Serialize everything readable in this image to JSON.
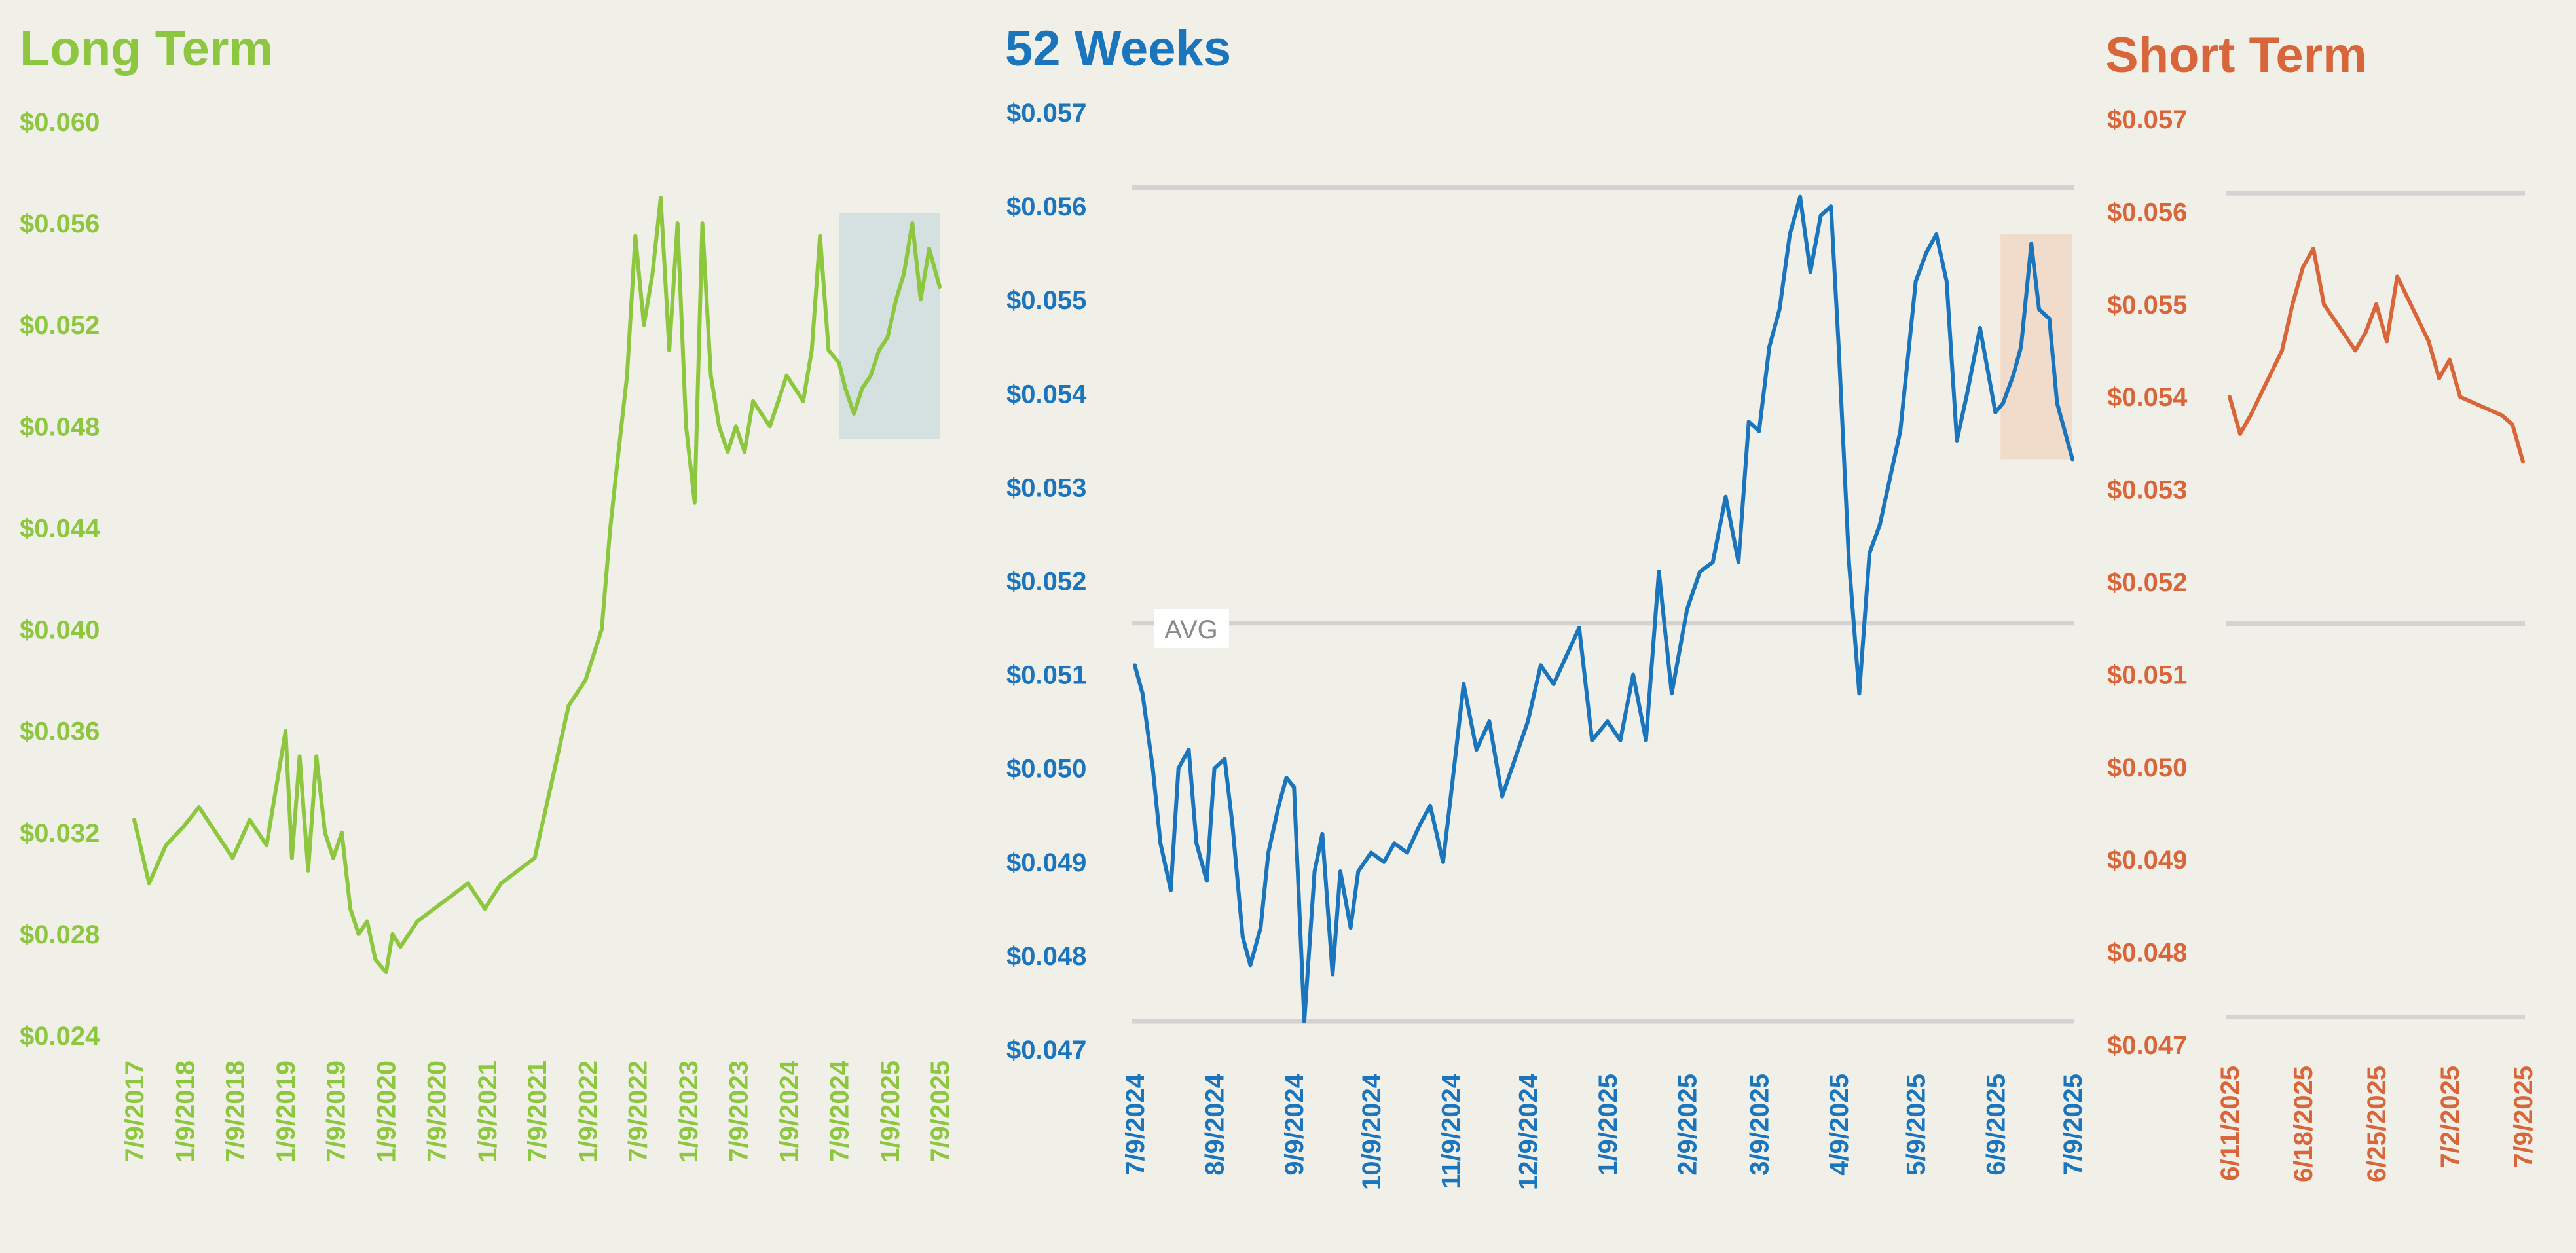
{
  "colors": {
    "background": "#f1f0e8",
    "long_term": "#8dc63f",
    "weeks_52": "#1a75bc",
    "short_term": "#d8663a",
    "long_term_highlight": "#d5e1e1",
    "weeks_52_highlight": "#f1dccb",
    "gridline": "#d3d3d3",
    "avg_label_bg": "#ffffff",
    "avg_label_text": "#8a8a8a"
  },
  "chart_data": [
    {
      "type": "line",
      "title": "Long Term",
      "xlabel": "",
      "ylabel": "",
      "ylim": [
        0.024,
        0.06
      ],
      "ytick_labels": [
        "$0.060",
        "$0.056",
        "$0.052",
        "$0.048",
        "$0.044",
        "$0.040",
        "$0.036",
        "$0.032",
        "$0.028",
        "$0.024"
      ],
      "xtick_labels": [
        "7/9/2017",
        "1/9/2018",
        "7/9/2018",
        "1/9/2019",
        "7/9/2019",
        "1/9/2020",
        "7/9/2020",
        "1/9/2021",
        "7/9/2021",
        "1/9/2022",
        "7/9/2022",
        "1/9/2023",
        "7/9/2023",
        "1/9/2024",
        "7/9/2024",
        "1/9/2025",
        "7/9/2025"
      ],
      "grid": false,
      "highlight": {
        "x_range": [
          "7/9/2024",
          "7/9/2025"
        ],
        "y_range": [
          0.0475,
          0.0564
        ]
      },
      "series": [
        {
          "x": [
            "7/9/2017",
            "9/1/2017",
            "11/1/2017",
            "1/1/2018",
            "3/1/2018",
            "5/1/2018",
            "7/1/2018",
            "9/1/2018",
            "11/1/2018",
            "1/9/2019",
            "2/1/2019",
            "3/1/2019",
            "4/1/2019",
            "5/1/2019",
            "6/1/2019",
            "7/1/2019",
            "8/1/2019",
            "9/1/2019",
            "10/1/2019",
            "11/1/2019",
            "12/1/2019",
            "1/9/2020",
            "2/1/2020",
            "3/1/2020",
            "5/1/2020",
            "7/1/2020",
            "9/1/2020",
            "11/1/2020",
            "1/1/2021",
            "3/1/2021",
            "5/1/2021",
            "7/1/2021",
            "9/1/2021",
            "11/1/2021",
            "1/1/2022",
            "3/1/2022",
            "4/1/2022",
            "5/1/2022",
            "6/1/2022",
            "7/1/2022",
            "8/1/2022",
            "9/1/2022",
            "10/1/2022",
            "11/1/2022",
            "12/1/2022",
            "1/1/2023",
            "2/1/2023",
            "3/1/2023",
            "4/1/2023",
            "5/1/2023",
            "6/1/2023",
            "7/1/2023",
            "8/1/2023",
            "9/1/2023",
            "11/1/2023",
            "1/1/2024",
            "3/1/2024",
            "4/1/2024",
            "5/1/2024",
            "6/1/2024",
            "7/9/2024",
            "8/1/2024",
            "9/1/2024",
            "10/1/2024",
            "11/1/2024",
            "12/1/2024",
            "1/1/2025",
            "2/1/2025",
            "3/1/2025",
            "4/1/2025",
            "5/1/2025",
            "6/1/2025",
            "7/9/2025"
          ],
          "y": [
            0.0325,
            0.03,
            0.0315,
            0.0322,
            0.033,
            0.032,
            0.031,
            0.0325,
            0.0315,
            0.036,
            0.031,
            0.035,
            0.0305,
            0.035,
            0.032,
            0.031,
            0.032,
            0.029,
            0.028,
            0.0285,
            0.027,
            0.0265,
            0.028,
            0.0275,
            0.0285,
            0.029,
            0.0295,
            0.03,
            0.029,
            0.03,
            0.0305,
            0.031,
            0.034,
            0.037,
            0.038,
            0.04,
            0.044,
            0.047,
            0.05,
            0.0555,
            0.052,
            0.054,
            0.057,
            0.051,
            0.056,
            0.048,
            0.045,
            0.056,
            0.05,
            0.048,
            0.047,
            0.048,
            0.047,
            0.049,
            0.048,
            0.05,
            0.049,
            0.051,
            0.0555,
            0.051,
            0.0505,
            0.0495,
            0.0485,
            0.0495,
            0.05,
            0.051,
            0.0515,
            0.053,
            0.054,
            0.056,
            0.053,
            0.055,
            0.0535
          ]
        }
      ]
    },
    {
      "type": "line",
      "title": "52 Weeks",
      "xlabel": "",
      "ylabel": "",
      "ylim": [
        0.047,
        0.057
      ],
      "ytick_labels": [
        "$0.057",
        "$0.056",
        "$0.055",
        "$0.054",
        "$0.053",
        "$0.052",
        "$0.051",
        "$0.050",
        "$0.049",
        "$0.048",
        "$0.047"
      ],
      "xtick_labels": [
        "7/9/2024",
        "8/9/2024",
        "9/9/2024",
        "10/9/2024",
        "11/9/2024",
        "12/9/2024",
        "1/9/2025",
        "2/9/2025",
        "3/9/2025",
        "4/9/2025",
        "5/9/2025",
        "6/9/2025",
        "7/9/2025"
      ],
      "grid": true,
      "reference_lines": [
        0.0562,
        0.05155,
        0.0473
      ],
      "annotation": "AVG",
      "highlight": {
        "x_range": [
          "6/11/2025",
          "7/9/2025"
        ],
        "y_range": [
          0.0533,
          0.0557
        ]
      },
      "series": [
        {
          "x": [
            "7/9/2024",
            "7/12/2024",
            "7/16/2024",
            "7/19/2024",
            "7/23/2024",
            "7/26/2024",
            "7/30/2024",
            "8/2/2024",
            "8/6/2024",
            "8/9/2024",
            "8/13/2024",
            "8/16/2024",
            "8/20/2024",
            "8/23/2024",
            "8/27/2024",
            "8/30/2024",
            "9/3/2024",
            "9/6/2024",
            "9/9/2024",
            "9/13/2024",
            "9/17/2024",
            "9/20/2024",
            "9/24/2024",
            "9/27/2024",
            "10/1/2024",
            "10/4/2024",
            "10/9/2024",
            "10/14/2024",
            "10/18/2024",
            "10/23/2024",
            "10/28/2024",
            "11/1/2024",
            "11/6/2024",
            "11/9/2024",
            "11/14/2024",
            "11/19/2024",
            "11/24/2024",
            "11/29/2024",
            "12/4/2024",
            "12/9/2024",
            "12/14/2024",
            "12/19/2024",
            "12/24/2024",
            "12/29/2024",
            "1/3/2025",
            "1/9/2025",
            "1/14/2025",
            "1/19/2025",
            "1/24/2025",
            "1/29/2025",
            "2/3/2025",
            "2/9/2025",
            "2/14/2025",
            "2/19/2025",
            "2/24/2025",
            "3/1/2025",
            "3/5/2025",
            "3/9/2025",
            "3/13/2025",
            "3/17/2025",
            "3/21/2025",
            "3/25/2025",
            "3/29/2025",
            "4/2/2025",
            "4/6/2025",
            "4/9/2025",
            "4/13/2025",
            "4/17/2025",
            "4/21/2025",
            "4/25/2025",
            "4/29/2025",
            "5/3/2025",
            "5/9/2025",
            "5/13/2025",
            "5/17/2025",
            "5/21/2025",
            "5/25/2025",
            "5/29/2025",
            "6/3/2025",
            "6/9/2025",
            "6/12/2025",
            "6/16/2025",
            "6/19/2025",
            "6/23/2025",
            "6/26/2025",
            "6/30/2025",
            "7/3/2025",
            "7/9/2025"
          ],
          "y": [
            0.0511,
            0.0508,
            0.05,
            0.0492,
            0.0487,
            0.05,
            0.0502,
            0.0492,
            0.0488,
            0.05,
            0.0501,
            0.0494,
            0.0482,
            0.0479,
            0.0483,
            0.0491,
            0.0496,
            0.0499,
            0.0498,
            0.0473,
            0.0489,
            0.0493,
            0.0478,
            0.0489,
            0.0483,
            0.0489,
            0.0491,
            0.049,
            0.0492,
            0.0491,
            0.0494,
            0.0496,
            0.049,
            0.0497,
            0.0509,
            0.0502,
            0.0505,
            0.0497,
            0.0501,
            0.0505,
            0.0511,
            0.0509,
            0.0512,
            0.0515,
            0.0503,
            0.0505,
            0.0503,
            0.051,
            0.0503,
            0.0521,
            0.0508,
            0.0517,
            0.0521,
            0.0522,
            0.0529,
            0.0522,
            0.0537,
            0.0536,
            0.0545,
            0.0549,
            0.0557,
            0.0561,
            0.0553,
            0.0559,
            0.056,
            0.0545,
            0.0522,
            0.0508,
            0.0523,
            0.0526,
            0.0531,
            0.0536,
            0.0552,
            0.0555,
            0.0557,
            0.0552,
            0.0535,
            0.054,
            0.0547,
            0.0538,
            0.0539,
            0.0542,
            0.0545,
            0.0556,
            0.0549,
            0.0548,
            0.0539,
            0.0533
          ]
        }
      ]
    },
    {
      "type": "line",
      "title": "Short Term",
      "xlabel": "",
      "ylabel": "",
      "ylim": [
        0.047,
        0.057
      ],
      "ytick_labels": [
        "$0.057",
        "$0.056",
        "$0.055",
        "$0.054",
        "$0.053",
        "$0.052",
        "$0.051",
        "$0.050",
        "$0.049",
        "$0.048",
        "$0.047"
      ],
      "xtick_labels": [
        "6/11/2025",
        "6/18/2025",
        "6/25/2025",
        "7/2/2025",
        "7/9/2025"
      ],
      "grid": true,
      "reference_lines": [
        0.0562,
        0.05155,
        0.0473
      ],
      "series": [
        {
          "x": [
            "6/11/2025",
            "6/12/2025",
            "6/13/2025",
            "6/16/2025",
            "6/17/2025",
            "6/18/2025",
            "6/19/2025",
            "6/20/2025",
            "6/23/2025",
            "6/24/2025",
            "6/25/2025",
            "6/26/2025",
            "6/27/2025",
            "6/30/2025",
            "7/1/2025",
            "7/2/2025",
            "7/3/2025",
            "7/7/2025",
            "7/8/2025",
            "7/9/2025"
          ],
          "y": [
            0.054,
            0.0536,
            0.0538,
            0.0545,
            0.055,
            0.0554,
            0.0556,
            0.055,
            0.0545,
            0.0547,
            0.055,
            0.0546,
            0.0553,
            0.0546,
            0.0542,
            0.0544,
            0.054,
            0.0538,
            0.0537,
            0.0533
          ]
        }
      ]
    }
  ]
}
